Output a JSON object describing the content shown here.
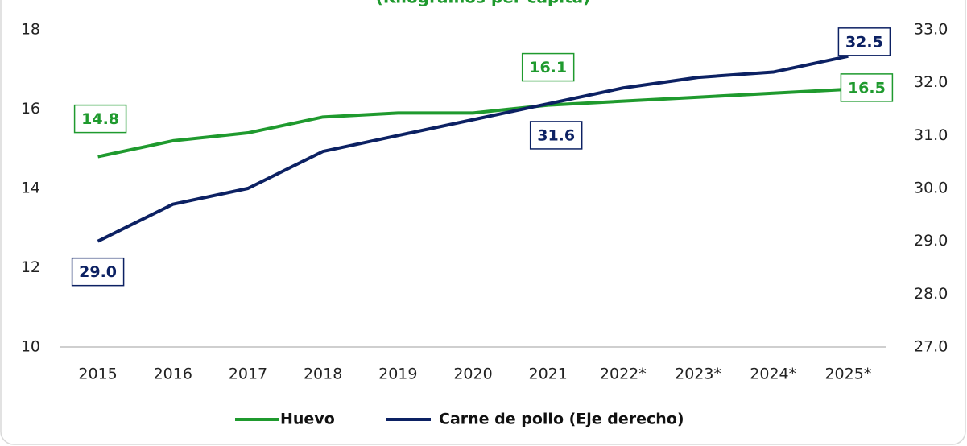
{
  "chart_data": {
    "type": "line",
    "subtitle": "(Kilogramos per cápita)",
    "categories": [
      "2015",
      "2016",
      "2017",
      "2018",
      "2019",
      "2020",
      "2021",
      "2022*",
      "2023*",
      "2024*",
      "2025*"
    ],
    "series": [
      {
        "name": "Huevo",
        "color": "#1f9a2e",
        "values": [
          14.8,
          15.2,
          15.4,
          15.8,
          15.9,
          15.9,
          16.1,
          16.2,
          16.3,
          16.4,
          16.5
        ],
        "value_labels": [
          "14.8",
          null,
          null,
          null,
          null,
          null,
          "16.1",
          null,
          null,
          null,
          "16.5"
        ]
      },
      {
        "name": "Carne de pollo (Eje derecho)",
        "color": "#0c2163",
        "axis": "y2",
        "values": [
          29.0,
          29.7,
          30.0,
          30.7,
          31.0,
          31.3,
          31.6,
          31.9,
          32.1,
          32.2,
          32.5
        ],
        "value_labels": [
          "29.0",
          null,
          null,
          null,
          null,
          null,
          "31.6",
          null,
          null,
          null,
          "32.5"
        ]
      }
    ],
    "ylim": [
      10,
      18
    ],
    "yticks": [
      10,
      12,
      14,
      16,
      18
    ],
    "y2lim": [
      27,
      33
    ],
    "y2ticks": [
      {
        "value": 27,
        "label": "27.0"
      },
      {
        "value": 28,
        "label": "28.0"
      },
      {
        "value": 29,
        "label": "29.0"
      },
      {
        "value": 30,
        "label": "30.0"
      },
      {
        "value": 31,
        "label": "31.0"
      },
      {
        "value": 32,
        "label": "32.0"
      },
      {
        "value": 33,
        "label": "33.0"
      }
    ],
    "legend": "bottom"
  }
}
